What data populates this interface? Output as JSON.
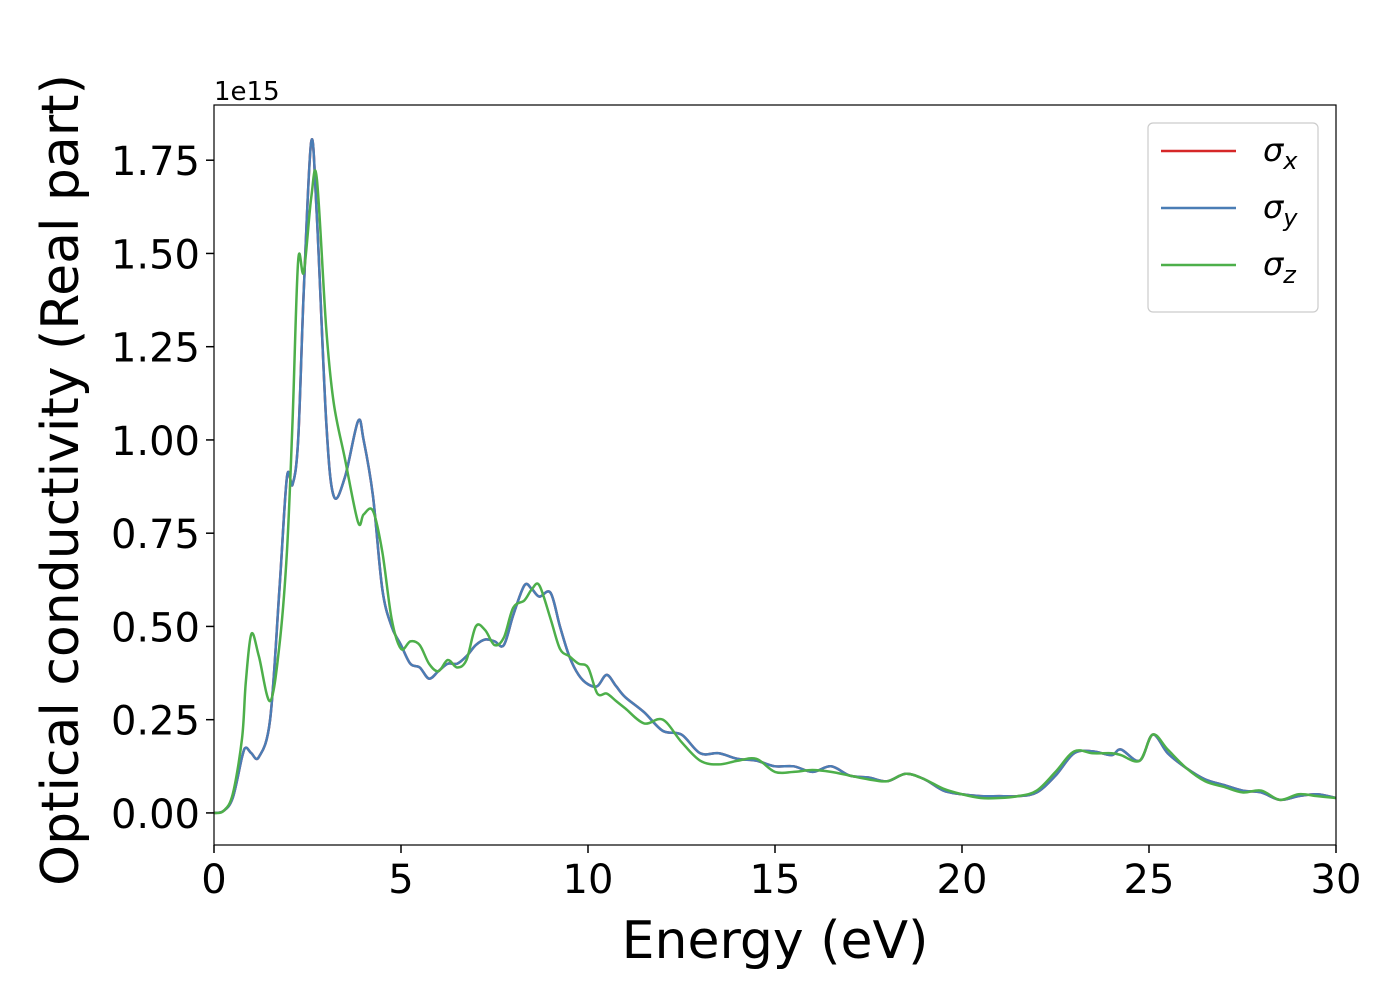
{
  "chart_data": {
    "type": "line",
    "xlabel": "Energy (eV)",
    "ylabel": "Optical conductivity (Real part)",
    "y_offset_label": "1e15",
    "xlim": [
      0,
      30
    ],
    "ylim": [
      -0.086,
      1.898
    ],
    "xticks": [
      0,
      5,
      10,
      15,
      20,
      25,
      30
    ],
    "yticks": [
      {
        "value": 0,
        "label": "0.00"
      },
      0.25,
      {
        "value": 0.5,
        "label": "0.50"
      },
      0.75,
      {
        "value": 1,
        "label": "1.00"
      },
      1.25,
      {
        "value": 1.5,
        "label": "1.50"
      },
      1.75
    ],
    "grid": false,
    "legend": "upper right",
    "x": [
      0,
      0.25,
      0.5,
      0.75,
      0.85,
      1.0,
      1.2,
      1.5,
      1.75,
      1.95,
      2.1,
      2.25,
      2.4,
      2.6,
      2.75,
      3.0,
      3.2,
      3.5,
      3.85,
      4.0,
      4.25,
      4.5,
      4.75,
      5.0,
      5.25,
      5.5,
      5.75,
      6.0,
      6.25,
      6.5,
      6.75,
      7.0,
      7.25,
      7.5,
      7.75,
      8.0,
      8.3,
      8.5,
      8.7,
      9.0,
      9.25,
      9.5,
      9.75,
      10.0,
      10.25,
      10.5,
      10.75,
      11.0,
      11.5,
      12.0,
      12.5,
      13.0,
      13.5,
      14.0,
      14.5,
      15.0,
      15.5,
      16.0,
      16.5,
      17.0,
      17.5,
      18.0,
      18.5,
      19.0,
      19.5,
      20.0,
      20.5,
      21.0,
      21.5,
      22.0,
      22.5,
      23.0,
      23.5,
      24.0,
      24.25,
      24.75,
      25.1,
      25.5,
      26.0,
      26.5,
      27.0,
      27.5,
      28.0,
      28.5,
      29.0,
      29.5,
      30.0
    ],
    "series": [
      {
        "name": "σx",
        "color": "#d62728",
        "values": [
          0,
          0.005,
          0.04,
          0.15,
          0.175,
          0.16,
          0.15,
          0.25,
          0.6,
          0.9,
          0.88,
          1.0,
          1.4,
          1.8,
          1.6,
          1.05,
          0.85,
          0.9,
          1.05,
          1.0,
          0.85,
          0.6,
          0.5,
          0.45,
          0.4,
          0.39,
          0.36,
          0.38,
          0.4,
          0.4,
          0.42,
          0.45,
          0.465,
          0.46,
          0.45,
          0.53,
          0.61,
          0.6,
          0.58,
          0.59,
          0.5,
          0.42,
          0.37,
          0.345,
          0.34,
          0.37,
          0.34,
          0.31,
          0.27,
          0.22,
          0.21,
          0.16,
          0.16,
          0.145,
          0.14,
          0.125,
          0.125,
          0.11,
          0.125,
          0.1,
          0.095,
          0.085,
          0.105,
          0.09,
          0.06,
          0.05,
          0.045,
          0.045,
          0.045,
          0.055,
          0.1,
          0.16,
          0.165,
          0.155,
          0.17,
          0.14,
          0.21,
          0.16,
          0.12,
          0.09,
          0.075,
          0.06,
          0.055,
          0.035,
          0.045,
          0.05,
          0.04
        ]
      },
      {
        "name": "σy",
        "color": "#4a7db5",
        "values": [
          0,
          0.005,
          0.04,
          0.15,
          0.175,
          0.16,
          0.15,
          0.25,
          0.6,
          0.9,
          0.88,
          1.0,
          1.4,
          1.8,
          1.6,
          1.05,
          0.85,
          0.9,
          1.05,
          1.0,
          0.85,
          0.6,
          0.5,
          0.45,
          0.4,
          0.39,
          0.36,
          0.38,
          0.4,
          0.4,
          0.42,
          0.45,
          0.465,
          0.46,
          0.45,
          0.53,
          0.61,
          0.6,
          0.58,
          0.59,
          0.5,
          0.42,
          0.37,
          0.345,
          0.34,
          0.37,
          0.34,
          0.31,
          0.27,
          0.22,
          0.21,
          0.16,
          0.16,
          0.145,
          0.14,
          0.125,
          0.125,
          0.11,
          0.125,
          0.1,
          0.095,
          0.085,
          0.105,
          0.09,
          0.06,
          0.05,
          0.045,
          0.045,
          0.045,
          0.055,
          0.1,
          0.16,
          0.165,
          0.155,
          0.17,
          0.14,
          0.21,
          0.16,
          0.12,
          0.09,
          0.075,
          0.06,
          0.055,
          0.035,
          0.045,
          0.05,
          0.04
        ]
      },
      {
        "name": "σz",
        "color": "#4daf4a",
        "values": [
          0,
          0.005,
          0.05,
          0.2,
          0.35,
          0.48,
          0.42,
          0.3,
          0.45,
          0.7,
          1.05,
          1.48,
          1.45,
          1.65,
          1.7,
          1.3,
          1.1,
          0.95,
          0.78,
          0.8,
          0.81,
          0.7,
          0.52,
          0.44,
          0.46,
          0.45,
          0.4,
          0.38,
          0.41,
          0.39,
          0.41,
          0.5,
          0.49,
          0.45,
          0.47,
          0.55,
          0.57,
          0.6,
          0.61,
          0.52,
          0.44,
          0.42,
          0.4,
          0.39,
          0.32,
          0.32,
          0.3,
          0.28,
          0.24,
          0.25,
          0.19,
          0.14,
          0.13,
          0.14,
          0.145,
          0.11,
          0.11,
          0.115,
          0.11,
          0.1,
          0.09,
          0.085,
          0.105,
          0.09,
          0.065,
          0.05,
          0.04,
          0.04,
          0.045,
          0.06,
          0.11,
          0.165,
          0.16,
          0.16,
          0.155,
          0.14,
          0.21,
          0.17,
          0.12,
          0.085,
          0.07,
          0.055,
          0.06,
          0.035,
          0.05,
          0.045,
          0.04
        ]
      }
    ]
  }
}
